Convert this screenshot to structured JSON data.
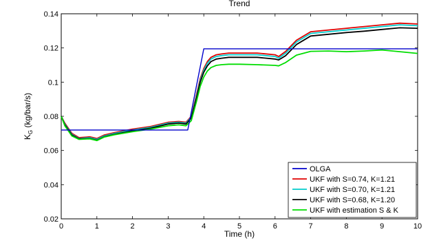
{
  "chart_data": {
    "type": "line",
    "title": "Trend",
    "xlabel": "Time (h)",
    "ylabel_main": "K",
    "ylabel_sub": "G",
    "ylabel_rest": " (kg/bar/s)",
    "xlim": [
      0,
      10
    ],
    "ylim": [
      0.02,
      0.14
    ],
    "xticks": [
      0,
      1,
      2,
      3,
      4,
      5,
      6,
      7,
      8,
      9,
      10
    ],
    "yticks": [
      0.02,
      0.04,
      0.06,
      0.08,
      0.1,
      0.12,
      0.14
    ],
    "ytick_labels": [
      "0.02",
      "0.04",
      "0.06",
      "0.08",
      "0.1",
      "0.12",
      "0.14"
    ],
    "grid": false,
    "legend_position": "right",
    "series": [
      {
        "name": "OLGA",
        "color": "#0000cc",
        "x": [
          0,
          3.55,
          4.0,
          10
        ],
        "y": [
          0.072,
          0.072,
          0.1195,
          0.1195
        ]
      },
      {
        "name": "UKF with S=0.74, K=1.21",
        "color": "#e00000",
        "x": [
          0,
          0.1,
          0.3,
          0.5,
          0.8,
          1.0,
          1.2,
          1.5,
          2.0,
          2.5,
          3.0,
          3.3,
          3.5,
          3.65,
          3.8,
          3.9,
          4.0,
          4.1,
          4.2,
          4.35,
          4.5,
          4.7,
          5.0,
          5.5,
          6.0,
          6.1,
          6.3,
          6.6,
          7.0,
          7.5,
          8.0,
          8.5,
          9.0,
          9.5,
          10
        ],
        "y": [
          0.08,
          0.076,
          0.07,
          0.0675,
          0.068,
          0.067,
          0.069,
          0.0705,
          0.0725,
          0.074,
          0.0765,
          0.077,
          0.0765,
          0.08,
          0.093,
          0.102,
          0.108,
          0.112,
          0.1145,
          0.116,
          0.1165,
          0.117,
          0.117,
          0.117,
          0.116,
          0.115,
          0.118,
          0.1245,
          0.1295,
          0.1305,
          0.1315,
          0.1325,
          0.1335,
          0.1345,
          0.134
        ]
      },
      {
        "name": "UKF with S=0.70, K=1.21",
        "color": "#00cccc",
        "x": [
          0,
          0.1,
          0.3,
          0.5,
          0.8,
          1.0,
          1.2,
          1.5,
          2.0,
          2.5,
          3.0,
          3.3,
          3.5,
          3.65,
          3.8,
          3.9,
          4.0,
          4.1,
          4.2,
          4.35,
          4.5,
          4.7,
          5.0,
          5.5,
          6.0,
          6.1,
          6.3,
          6.6,
          7.0,
          7.5,
          8.0,
          8.5,
          9.0,
          9.5,
          10
        ],
        "y": [
          0.08,
          0.0755,
          0.0695,
          0.067,
          0.0675,
          0.0665,
          0.0685,
          0.07,
          0.072,
          0.0735,
          0.076,
          0.0765,
          0.076,
          0.0795,
          0.092,
          0.101,
          0.107,
          0.111,
          0.1135,
          0.115,
          0.1155,
          0.116,
          0.116,
          0.116,
          0.115,
          0.114,
          0.117,
          0.1235,
          0.1285,
          0.1295,
          0.1305,
          0.1315,
          0.1325,
          0.1335,
          0.133
        ]
      },
      {
        "name": "UKF with S=0.68, K=1.20",
        "color": "#000000",
        "x": [
          0,
          0.1,
          0.3,
          0.5,
          0.8,
          1.0,
          1.2,
          1.5,
          2.0,
          2.5,
          3.0,
          3.3,
          3.5,
          3.65,
          3.8,
          3.9,
          4.0,
          4.1,
          4.2,
          4.35,
          4.5,
          4.7,
          5.0,
          5.5,
          6.0,
          6.1,
          6.3,
          6.6,
          7.0,
          7.5,
          8.0,
          8.5,
          9.0,
          9.5,
          10
        ],
        "y": [
          0.08,
          0.075,
          0.069,
          0.0668,
          0.067,
          0.066,
          0.068,
          0.0695,
          0.0715,
          0.073,
          0.0755,
          0.076,
          0.0755,
          0.079,
          0.091,
          0.1,
          0.1058,
          0.1095,
          0.112,
          0.1135,
          0.114,
          0.1145,
          0.1145,
          0.1145,
          0.1135,
          0.113,
          0.1155,
          0.122,
          0.127,
          0.128,
          0.129,
          0.1298,
          0.1308,
          0.1318,
          0.1315
        ]
      },
      {
        "name": "UKF with estimation S & K",
        "color": "#00dd00",
        "x": [
          0,
          0.1,
          0.3,
          0.5,
          0.8,
          1.0,
          1.2,
          1.5,
          2.0,
          2.5,
          3.0,
          3.3,
          3.5,
          3.65,
          3.8,
          3.9,
          4.0,
          4.1,
          4.2,
          4.35,
          4.5,
          4.7,
          5.0,
          5.5,
          6.0,
          6.1,
          6.3,
          6.6,
          7.0,
          7.5,
          8.0,
          8.5,
          9.0,
          9.5,
          10
        ],
        "y": [
          0.08,
          0.0745,
          0.0685,
          0.0665,
          0.0668,
          0.0658,
          0.0678,
          0.0692,
          0.071,
          0.0725,
          0.0745,
          0.075,
          0.0745,
          0.0775,
          0.089,
          0.0975,
          0.103,
          0.1065,
          0.1085,
          0.1098,
          0.1102,
          0.1105,
          0.1105,
          0.1102,
          0.1098,
          0.1095,
          0.1115,
          0.1158,
          0.118,
          0.1182,
          0.1178,
          0.1182,
          0.1188,
          0.1178,
          0.1168
        ]
      }
    ]
  }
}
